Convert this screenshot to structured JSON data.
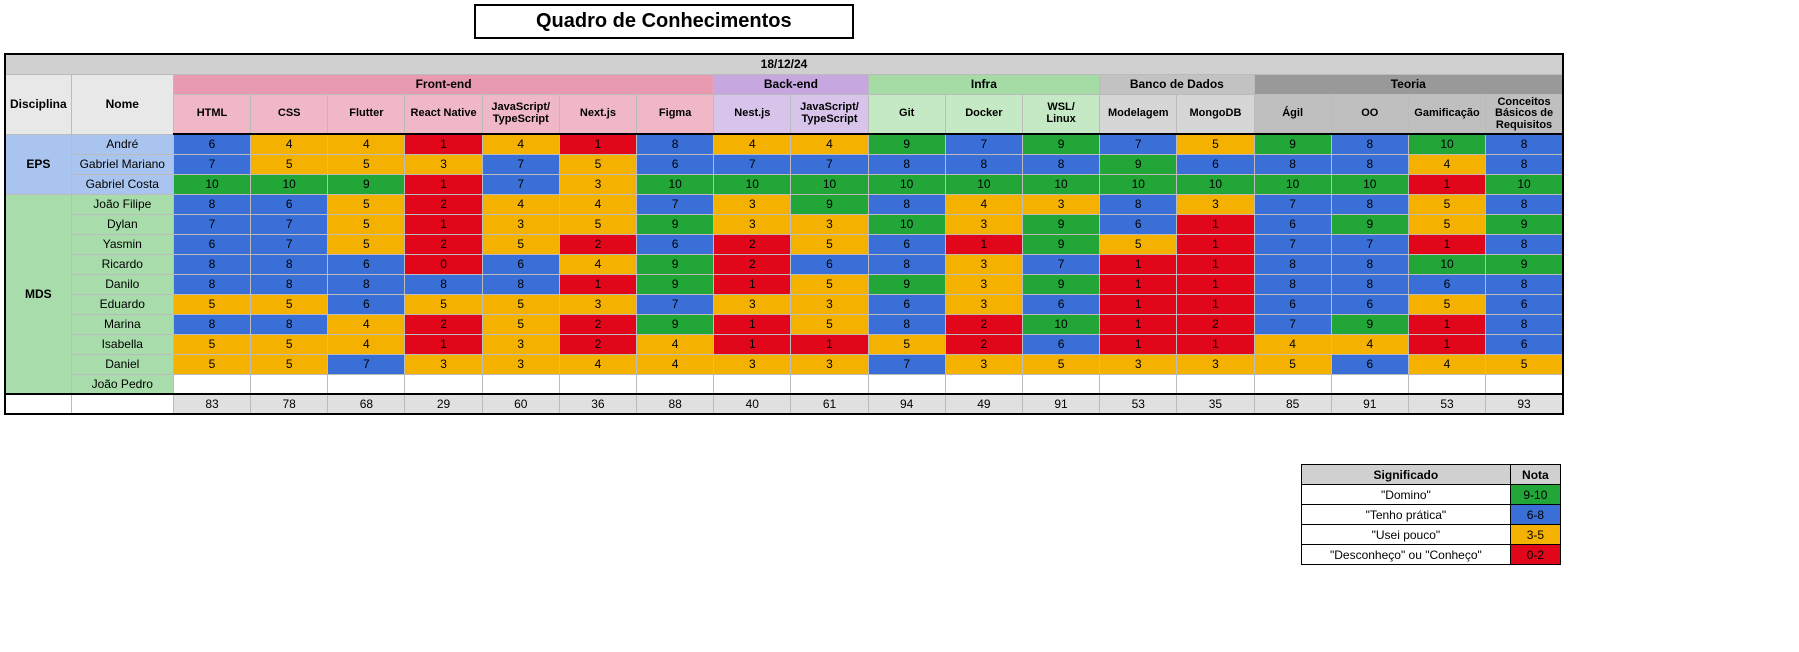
{
  "title": "Quadro de Conhecimentos",
  "date": "18/12/24",
  "fixedHeaders": {
    "disciplina": "Disciplina",
    "nome": "Nome"
  },
  "colors": {
    "dateBg": "#d0d0d0",
    "fixedBg": "#e8e8e8",
    "totalsBg": "#e0e0e0",
    "group": {
      "frontend": {
        "hdr": "#e79ab0",
        "skill": "#f0b8c7"
      },
      "backend": {
        "hdr": "#c6a7e0",
        "skill": "#d8c3ea"
      },
      "infra": {
        "hdr": "#a5dca5",
        "skill": "#c4e9c4"
      },
      "db": {
        "hdr": "#c2c2c2",
        "skill": "#d6d6d6"
      },
      "teoria": {
        "hdr": "#999999",
        "skill": "#bfbfbf"
      }
    },
    "disc": {
      "eps": "#a9c5ef",
      "mds": "#a8dcab"
    },
    "score": {
      "green": "#23a638",
      "blue": "#3a6fd8",
      "orange": "#f5b100",
      "red": "#e2061b"
    },
    "empty": "#ffffff"
  },
  "groups": [
    {
      "id": "frontend",
      "label": "Front-end",
      "skills": [
        "HTML",
        "CSS",
        "Flutter",
        "React Native",
        "JavaScript/TypeScript",
        "Next.js",
        "Figma"
      ]
    },
    {
      "id": "backend",
      "label": "Back-end",
      "skills": [
        "Nest.js",
        "JavaScript/TypeScript"
      ]
    },
    {
      "id": "infra",
      "label": "Infra",
      "skills": [
        "Git",
        "Docker",
        "WSL/Linux"
      ]
    },
    {
      "id": "db",
      "label": "Banco de Dados",
      "skills": [
        "Modelagem",
        "MongoDB"
      ]
    },
    {
      "id": "teoria",
      "label": "Teoria",
      "skills": [
        "Ágil",
        "OO",
        "Gamificação",
        "Conceitos Básicos de Requisitos"
      ]
    }
  ],
  "disciplines": [
    {
      "id": "eps",
      "label": "EPS",
      "people": [
        {
          "name": "André",
          "scores": [
            6,
            4,
            4,
            1,
            4,
            1,
            8,
            4,
            4,
            9,
            7,
            9,
            7,
            5,
            9,
            8,
            10,
            8
          ]
        },
        {
          "name": "Gabriel Mariano",
          "scores": [
            7,
            5,
            5,
            3,
            7,
            5,
            6,
            7,
            7,
            8,
            8,
            8,
            9,
            6,
            8,
            8,
            4,
            8
          ]
        },
        {
          "name": "Gabriel Costa",
          "scores": [
            10,
            10,
            9,
            1,
            7,
            3,
            10,
            10,
            10,
            10,
            10,
            10,
            10,
            10,
            10,
            10,
            1,
            10
          ]
        }
      ]
    },
    {
      "id": "mds",
      "label": "MDS",
      "people": [
        {
          "name": "João Filipe",
          "scores": [
            8,
            6,
            5,
            2,
            4,
            4,
            7,
            3,
            9,
            8,
            4,
            3,
            8,
            3,
            7,
            8,
            5,
            8
          ]
        },
        {
          "name": "Dylan",
          "scores": [
            7,
            7,
            5,
            1,
            3,
            5,
            9,
            3,
            3,
            10,
            3,
            9,
            6,
            1,
            6,
            9,
            5,
            9
          ]
        },
        {
          "name": "Yasmin",
          "scores": [
            6,
            7,
            5,
            2,
            5,
            2,
            6,
            2,
            5,
            6,
            1,
            9,
            5,
            1,
            7,
            7,
            1,
            8
          ]
        },
        {
          "name": "Ricardo",
          "scores": [
            8,
            8,
            6,
            0,
            6,
            4,
            9,
            2,
            6,
            8,
            3,
            7,
            1,
            1,
            8,
            8,
            10,
            9
          ]
        },
        {
          "name": "Danilo",
          "scores": [
            8,
            8,
            8,
            8,
            8,
            1,
            9,
            1,
            5,
            9,
            3,
            9,
            1,
            1,
            8,
            8,
            6,
            8
          ]
        },
        {
          "name": "Eduardo",
          "scores": [
            5,
            5,
            6,
            5,
            5,
            3,
            7,
            3,
            3,
            6,
            3,
            6,
            1,
            1,
            6,
            6,
            5,
            6
          ]
        },
        {
          "name": "Marina",
          "scores": [
            8,
            8,
            4,
            2,
            5,
            2,
            9,
            1,
            5,
            8,
            2,
            10,
            1,
            2,
            7,
            9,
            1,
            8
          ]
        },
        {
          "name": "Isabella",
          "scores": [
            5,
            5,
            4,
            1,
            3,
            2,
            4,
            1,
            1,
            5,
            2,
            6,
            1,
            1,
            4,
            4,
            1,
            6
          ]
        },
        {
          "name": "Daniel",
          "scores": [
            5,
            5,
            7,
            3,
            3,
            4,
            4,
            3,
            3,
            7,
            3,
            5,
            3,
            3,
            5,
            6,
            4,
            5
          ]
        },
        {
          "name": "João Pedro",
          "scores": null
        }
      ]
    }
  ],
  "totals": [
    83,
    78,
    68,
    29,
    60,
    36,
    88,
    40,
    61,
    94,
    49,
    91,
    53,
    35,
    85,
    91,
    53,
    93
  ],
  "legend": {
    "headers": {
      "meaning": "Significado",
      "grade": "Nota"
    },
    "rows": [
      {
        "meaning": "\"Domino\"",
        "grade": "9-10",
        "color": "green"
      },
      {
        "meaning": "\"Tenho prática\"",
        "grade": "6-8",
        "color": "blue"
      },
      {
        "meaning": "\"Usei pouco\"",
        "grade": "3-5",
        "color": "orange"
      },
      {
        "meaning": "\"Desconheço\" ou \"Conheço\"",
        "grade": "0-2",
        "color": "red"
      }
    ]
  }
}
